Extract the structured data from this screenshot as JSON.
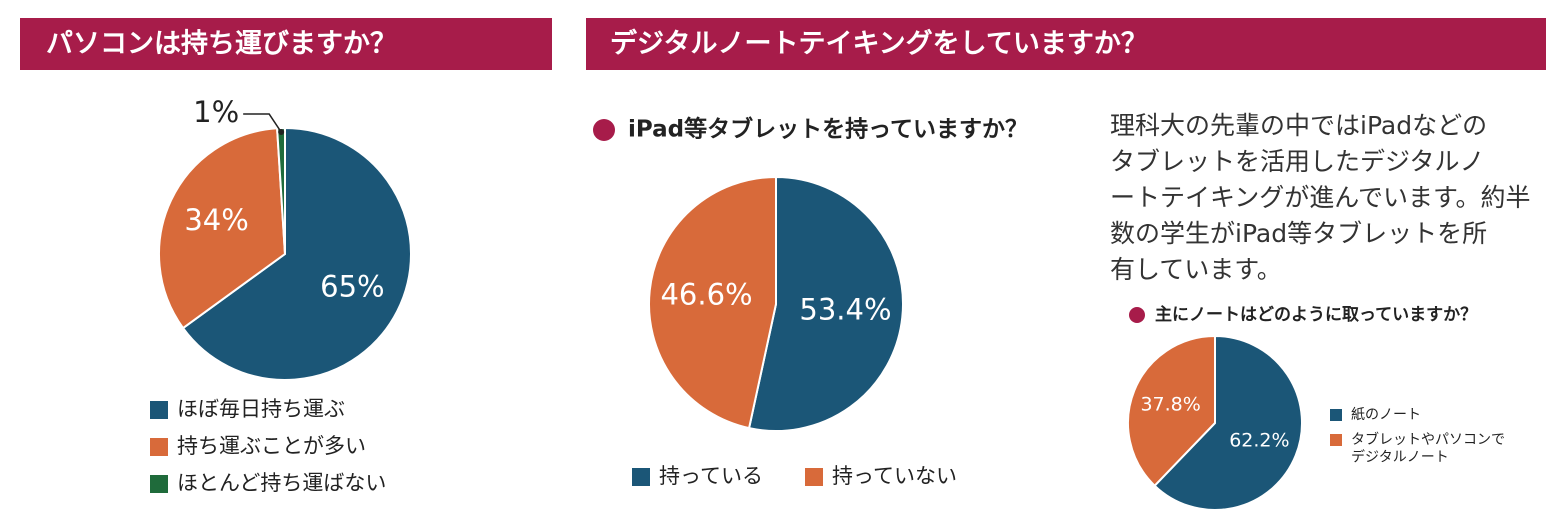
{
  "headers": [
    "パソコンは持ち運びますか？",
    "デジタルノートテイキングをしていますか？"
  ],
  "paragraph_lines": [
    "理科大の先輩の中ではiPadなどの",
    "タブレットを活用したデジタルノ",
    "ートテイキングが進んでいます。約半",
    "数の学生がiPad等タブレットを所",
    "有しています。"
  ],
  "chart_data": [
    {
      "type": "pie",
      "categories": [
        "ほぼ毎日持ち運ぶ",
        "持ち運ぶことが多い",
        "ほとんど持ち運ばない"
      ],
      "values": [
        65,
        34,
        1
      ],
      "value_labels": [
        "65%",
        "34%",
        "1%"
      ],
      "colors": [
        "#1b5677",
        "#d86a3a",
        "#1f6b3b"
      ]
    },
    {
      "type": "pie",
      "title": "iPad等タブレットを持っていますか？",
      "categories": [
        "持っている",
        "持っていない"
      ],
      "values": [
        53.4,
        46.6
      ],
      "value_labels": [
        "53.4%",
        "46.6%"
      ],
      "colors": [
        "#1b5677",
        "#d86a3a"
      ]
    },
    {
      "type": "pie",
      "title": "主にノートはどのように取っていますか？",
      "categories": [
        "紙のノート",
        "タブレットやパソコンで\nデジタルノート"
      ],
      "values": [
        62.2,
        37.8
      ],
      "value_labels": [
        "62.2%",
        "37.8%"
      ],
      "colors": [
        "#1b5677",
        "#d86a3a"
      ]
    }
  ]
}
